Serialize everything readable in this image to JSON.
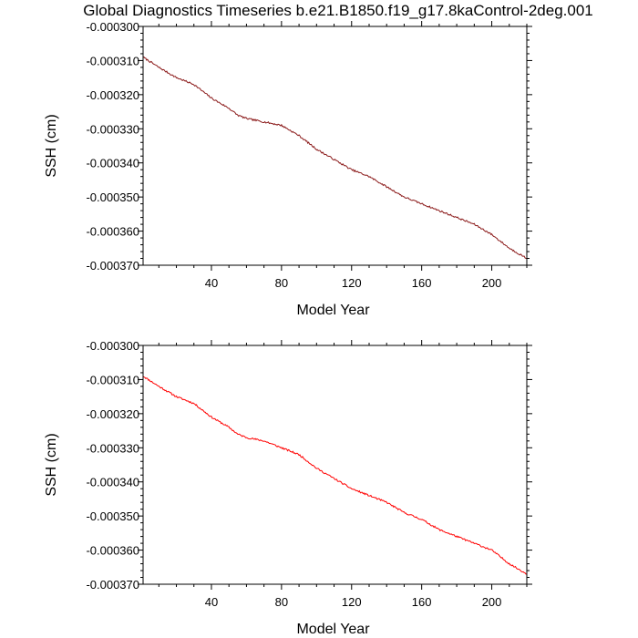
{
  "figure_title": "Global Diagnostics Timeseries b.e21.B1850.f19_g17.8kaControl-2deg.001",
  "chart_data": [
    {
      "type": "line",
      "panel": "top",
      "title": "Global Diagnostics Timeseries b.e21.B1850.f19_g17.8kaControl-2deg.001",
      "xlabel": "Model Year",
      "ylabel": "SSH (cm)",
      "xlim": [
        1,
        220
      ],
      "ylim": [
        -0.00037,
        -0.0003
      ],
      "xticks": [
        40,
        80,
        120,
        160,
        200
      ],
      "xtick_labels": [
        "40",
        "80",
        "120",
        "160",
        "200"
      ],
      "yticks": [
        -0.0003,
        -0.00031,
        -0.00032,
        -0.00033,
        -0.00034,
        -0.00035,
        -0.00036,
        -0.00037
      ],
      "ytick_labels": [
        "-0.000300",
        "-0.000310",
        "-0.000320",
        "-0.000330",
        "-0.000340",
        "-0.000350",
        "-0.000360",
        "-0.000370"
      ],
      "series": [
        {
          "name": "SSH",
          "color": "#8b1a1a",
          "x": [
            1,
            10,
            20,
            30,
            40,
            50,
            55,
            60,
            70,
            80,
            90,
            100,
            110,
            120,
            130,
            140,
            150,
            160,
            170,
            180,
            190,
            200,
            210,
            220
          ],
          "y": [
            -0.000309,
            -0.000312,
            -0.000315,
            -0.000317,
            -0.000321,
            -0.000324,
            -0.000326,
            -0.000327,
            -0.000328,
            -0.000329,
            -0.000332,
            -0.000336,
            -0.000339,
            -0.000342,
            -0.000344,
            -0.000347,
            -0.00035,
            -0.000352,
            -0.000354,
            -0.000356,
            -0.000358,
            -0.000361,
            -0.000365,
            -0.000368
          ]
        }
      ]
    },
    {
      "type": "line",
      "panel": "bottom",
      "xlabel": "Model Year",
      "ylabel": "SSH (cm)",
      "xlim": [
        1,
        220
      ],
      "ylim": [
        -0.00037,
        -0.0003
      ],
      "xticks": [
        40,
        80,
        120,
        160,
        200
      ],
      "xtick_labels": [
        "40",
        "80",
        "120",
        "160",
        "200"
      ],
      "yticks": [
        -0.0003,
        -0.00031,
        -0.00032,
        -0.00033,
        -0.00034,
        -0.00035,
        -0.00036,
        -0.00037
      ],
      "ytick_labels": [
        "-0.000300",
        "-0.000310",
        "-0.000320",
        "-0.000330",
        "-0.000340",
        "-0.000350",
        "-0.000360",
        "-0.000370"
      ],
      "series": [
        {
          "name": "SSH",
          "color": "#ff0000",
          "x": [
            1,
            10,
            20,
            30,
            40,
            50,
            55,
            60,
            70,
            80,
            90,
            100,
            110,
            120,
            130,
            140,
            150,
            160,
            170,
            180,
            190,
            200,
            210,
            220
          ],
          "y": [
            -0.000309,
            -0.000312,
            -0.000315,
            -0.000317,
            -0.000321,
            -0.000324,
            -0.000326,
            -0.000327,
            -0.000328,
            -0.00033,
            -0.000332,
            -0.000336,
            -0.000339,
            -0.000342,
            -0.000344,
            -0.000346,
            -0.000349,
            -0.000351,
            -0.000354,
            -0.000356,
            -0.000358,
            -0.00036,
            -0.000364,
            -0.000367
          ]
        }
      ]
    }
  ]
}
